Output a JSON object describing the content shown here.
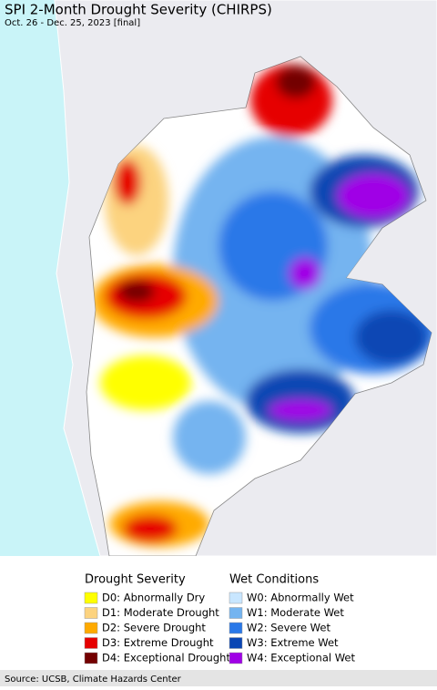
{
  "header": {
    "title": "SPI 2-Month Drought Severity (CHIRPS)",
    "subtitle": "Oct. 26 - Dec. 25, 2023 [final]"
  },
  "legend": {
    "groups": [
      {
        "title": "Drought Severity",
        "items": [
          {
            "label": "D0: Abnormally Dry",
            "color": "#ffff00"
          },
          {
            "label": "D1: Moderate Drought",
            "color": "#fcd37f"
          },
          {
            "label": "D2: Severe Drought",
            "color": "#ffaa00"
          },
          {
            "label": "D3: Extreme Drought",
            "color": "#e60000"
          },
          {
            "label": "D4: Exceptional Drought",
            "color": "#730000"
          }
        ]
      },
      {
        "title": "Wet Conditions",
        "items": [
          {
            "label": "W0: Abnormally Wet",
            "color": "#c8e6ff"
          },
          {
            "label": "W1: Moderate Wet",
            "color": "#74b4f0"
          },
          {
            "label": "W2: Severe Wet",
            "color": "#2a78e8"
          },
          {
            "label": "W3: Extreme Wet",
            "color": "#0a46b4"
          },
          {
            "label": "W4: Exceptional Wet",
            "color": "#a000e6"
          }
        ]
      }
    ]
  },
  "footer": {
    "source": "Source: UCSB, Climate Hazards Center"
  }
}
